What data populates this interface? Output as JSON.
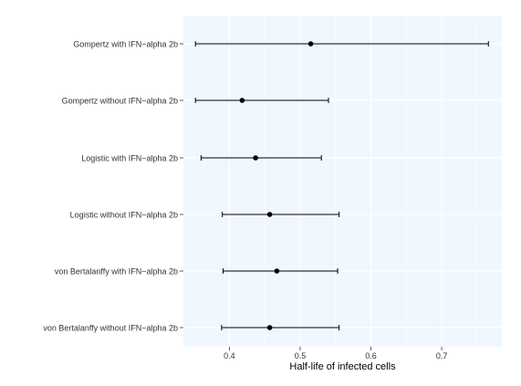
{
  "chart_data": {
    "type": "forest",
    "title": "",
    "xlabel": "Half-life of infected cells",
    "ylabel": "",
    "xlim": [
      0.335,
      0.785
    ],
    "x_ticks": [
      0.4,
      0.5,
      0.6,
      0.7
    ],
    "x_tick_labels": [
      "0.4",
      "0.5",
      "0.6",
      "0.7"
    ],
    "grid": true,
    "legend": "none",
    "categories": [
      "Gompertz with IFN−alpha 2b",
      "Gompertz without IFN−alpha 2b",
      "Logistic with IFN−alpha 2b",
      "Logistic without IFN−alpha 2b",
      "von Bertalanffy with IFN−alpha 2b",
      "von Bertalanffy without IFN−alpha 2b"
    ],
    "estimates": [
      0.515,
      0.418,
      0.437,
      0.457,
      0.467,
      0.457
    ],
    "lower": [
      0.352,
      0.352,
      0.36,
      0.39,
      0.391,
      0.389
    ],
    "upper": [
      0.766,
      0.54,
      0.53,
      0.555,
      0.553,
      0.555
    ]
  },
  "colors": {
    "panel_background": "#f0f7ff",
    "grid_line": "#ffffff",
    "marks": "#000000",
    "text": "#333333"
  }
}
